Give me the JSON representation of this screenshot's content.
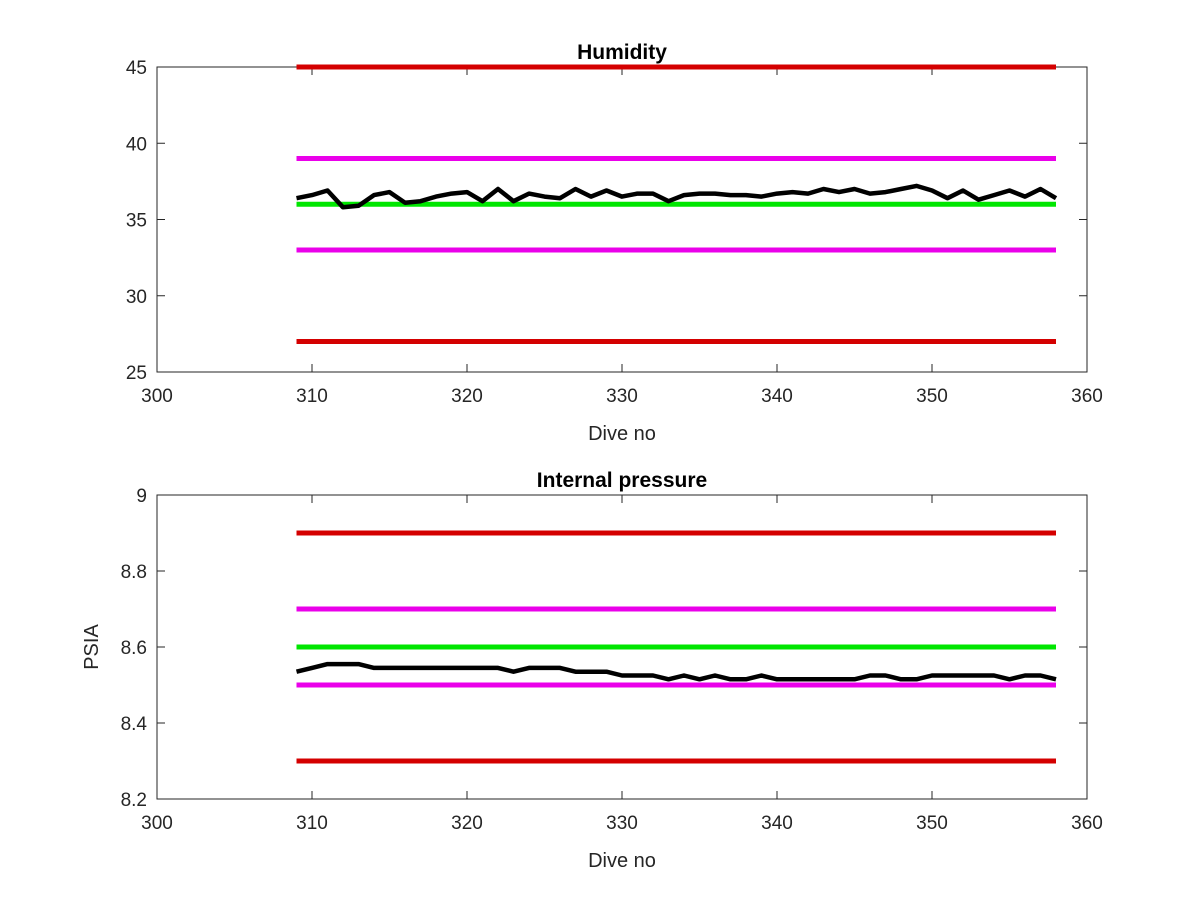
{
  "chart_data": [
    {
      "type": "line",
      "title": "Humidity",
      "xlabel": "Dive no",
      "ylabel": "",
      "xlim": [
        300,
        360
      ],
      "ylim": [
        25,
        45
      ],
      "xticks": [
        300,
        310,
        320,
        330,
        340,
        350,
        360
      ],
      "yticks": [
        25,
        30,
        35,
        40,
        45
      ],
      "grid": false,
      "series": [
        {
          "color": "#d40000",
          "x": [
            309,
            358
          ],
          "y": [
            45,
            45
          ]
        },
        {
          "color": "#d40000",
          "x": [
            309,
            358
          ],
          "y": [
            27,
            27
          ]
        },
        {
          "color": "#ea00ea",
          "x": [
            309,
            358
          ],
          "y": [
            39,
            39
          ]
        },
        {
          "color": "#ea00ea",
          "x": [
            309,
            358
          ],
          "y": [
            33,
            33
          ]
        },
        {
          "color": "#00e600",
          "x": [
            309,
            358
          ],
          "y": [
            36,
            36
          ]
        },
        {
          "color": "#000000",
          "x": [
            309,
            310,
            311,
            312,
            313,
            314,
            315,
            316,
            317,
            318,
            319,
            320,
            321,
            322,
            323,
            324,
            325,
            326,
            327,
            328,
            329,
            330,
            331,
            332,
            333,
            334,
            335,
            336,
            337,
            338,
            339,
            340,
            341,
            342,
            343,
            344,
            345,
            346,
            347,
            348,
            349,
            350,
            351,
            352,
            353,
            354,
            355,
            356,
            357,
            358
          ],
          "y": [
            36.4,
            36.6,
            36.9,
            35.8,
            35.9,
            36.6,
            36.8,
            36.1,
            36.2,
            36.5,
            36.7,
            36.8,
            36.2,
            37.0,
            36.2,
            36.7,
            36.5,
            36.4,
            37.0,
            36.5,
            36.9,
            36.5,
            36.7,
            36.7,
            36.2,
            36.6,
            36.7,
            36.7,
            36.6,
            36.6,
            36.5,
            36.7,
            36.8,
            36.7,
            37.0,
            36.8,
            37.0,
            36.7,
            36.8,
            37.0,
            37.2,
            36.9,
            36.4,
            36.9,
            36.3,
            36.6,
            36.9,
            36.5,
            37.0,
            36.4
          ]
        }
      ]
    },
    {
      "type": "line",
      "title": "Internal pressure",
      "xlabel": "Dive no",
      "ylabel": "PSIA",
      "xlim": [
        300,
        360
      ],
      "ylim": [
        8.2,
        9
      ],
      "xticks": [
        300,
        310,
        320,
        330,
        340,
        350,
        360
      ],
      "yticks": [
        8.2,
        8.4,
        8.6,
        8.8,
        9
      ],
      "grid": false,
      "series": [
        {
          "color": "#d40000",
          "x": [
            309,
            358
          ],
          "y": [
            8.9,
            8.9
          ]
        },
        {
          "color": "#d40000",
          "x": [
            309,
            358
          ],
          "y": [
            8.3,
            8.3
          ]
        },
        {
          "color": "#ea00ea",
          "x": [
            309,
            358
          ],
          "y": [
            8.7,
            8.7
          ]
        },
        {
          "color": "#ea00ea",
          "x": [
            309,
            358
          ],
          "y": [
            8.5,
            8.5
          ]
        },
        {
          "color": "#00e600",
          "x": [
            309,
            358
          ],
          "y": [
            8.6,
            8.6
          ]
        },
        {
          "color": "#000000",
          "x": [
            309,
            310,
            311,
            312,
            313,
            314,
            315,
            316,
            317,
            318,
            319,
            320,
            321,
            322,
            323,
            324,
            325,
            326,
            327,
            328,
            329,
            330,
            331,
            332,
            333,
            334,
            335,
            336,
            337,
            338,
            339,
            340,
            341,
            342,
            343,
            344,
            345,
            346,
            347,
            348,
            349,
            350,
            351,
            352,
            353,
            354,
            355,
            356,
            357,
            358
          ],
          "y": [
            8.535,
            8.545,
            8.555,
            8.555,
            8.555,
            8.545,
            8.545,
            8.545,
            8.545,
            8.545,
            8.545,
            8.545,
            8.545,
            8.545,
            8.535,
            8.545,
            8.545,
            8.545,
            8.535,
            8.535,
            8.535,
            8.525,
            8.525,
            8.525,
            8.515,
            8.525,
            8.515,
            8.525,
            8.515,
            8.515,
            8.525,
            8.515,
            8.515,
            8.515,
            8.515,
            8.515,
            8.515,
            8.525,
            8.525,
            8.515,
            8.515,
            8.525,
            8.525,
            8.525,
            8.525,
            8.525,
            8.515,
            8.525,
            8.525,
            8.515
          ]
        }
      ]
    }
  ]
}
